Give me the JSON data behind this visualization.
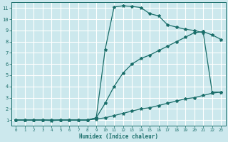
{
  "bg_color": "#cce8ed",
  "grid_color": "#ffffff",
  "line_color": "#1a6e6a",
  "xlabel": "Humidex (Indice chaleur)",
  "xlim": [
    -0.5,
    23.5
  ],
  "ylim": [
    0.5,
    11.5
  ],
  "xticks": [
    0,
    1,
    2,
    3,
    4,
    5,
    6,
    7,
    8,
    9,
    10,
    11,
    12,
    13,
    14,
    15,
    16,
    17,
    18,
    19,
    20,
    21,
    22,
    23
  ],
  "yticks": [
    1,
    2,
    3,
    4,
    5,
    6,
    7,
    8,
    9,
    10,
    11
  ],
  "curve_lower_x": [
    0,
    1,
    2,
    3,
    4,
    5,
    6,
    7,
    8,
    9,
    10,
    11,
    12,
    13,
    14,
    15,
    16,
    17,
    18,
    19,
    20,
    21,
    22,
    23
  ],
  "curve_lower_y": [
    1.0,
    1.0,
    1.0,
    1.0,
    1.0,
    1.0,
    1.0,
    1.0,
    1.0,
    1.1,
    1.2,
    1.4,
    1.6,
    1.8,
    2.0,
    2.1,
    2.3,
    2.5,
    2.7,
    2.9,
    3.0,
    3.2,
    3.4,
    3.5
  ],
  "curve_mid_x": [
    0,
    1,
    2,
    3,
    4,
    5,
    6,
    7,
    8,
    9,
    10,
    11,
    12,
    13,
    14,
    15,
    16,
    17,
    18,
    19,
    20,
    21,
    22,
    23
  ],
  "curve_mid_y": [
    1.0,
    1.0,
    1.0,
    1.0,
    1.0,
    1.0,
    1.0,
    1.0,
    1.0,
    1.2,
    2.5,
    4.0,
    5.2,
    6.0,
    6.5,
    6.8,
    7.2,
    7.6,
    8.0,
    8.4,
    8.8,
    8.9,
    8.6,
    8.2
  ],
  "curve_upper_x": [
    0,
    1,
    2,
    3,
    4,
    5,
    6,
    7,
    8,
    9,
    10,
    11,
    12,
    13,
    14,
    15,
    16,
    17,
    18,
    19,
    20,
    21,
    22,
    23
  ],
  "curve_upper_y": [
    1.0,
    1.0,
    1.0,
    1.0,
    0.95,
    1.0,
    1.0,
    1.0,
    1.0,
    1.2,
    7.3,
    11.1,
    11.2,
    11.15,
    11.05,
    10.5,
    10.3,
    9.5,
    9.3,
    9.1,
    9.0,
    8.8,
    3.5,
    3.5
  ]
}
